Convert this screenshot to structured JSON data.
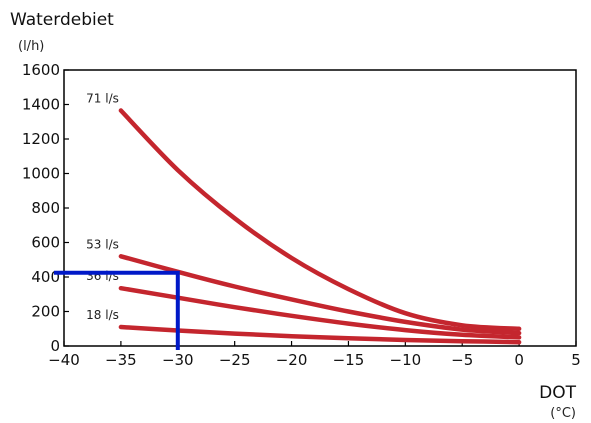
{
  "chart_data": {
    "type": "line",
    "title": "Waterdebiet",
    "ylabel": "Waterdebiet",
    "yunit": "(l/h)",
    "xlabel": "DOT",
    "xunit": "(°C)",
    "xlim": [
      -40,
      5
    ],
    "ylim": [
      0,
      1600
    ],
    "xticks": [
      -40,
      -35,
      -30,
      -25,
      -20,
      -15,
      -10,
      -5,
      0,
      5
    ],
    "yticks": [
      0,
      200,
      400,
      600,
      800,
      1000,
      1200,
      1400,
      1600
    ],
    "grid": false,
    "series_color": "#c4262e",
    "marker_color": "#0019c8",
    "series": [
      {
        "name": "71 l/s",
        "x": [
          -35,
          -30,
          -25,
          -20,
          -15,
          -10,
          -5,
          0
        ],
        "y": [
          1365,
          1020,
          740,
          510,
          330,
          190,
          120,
          100
        ]
      },
      {
        "name": "53 l/s",
        "x": [
          -35,
          -30,
          -25,
          -20,
          -15,
          -10,
          -5,
          0
        ],
        "y": [
          520,
          430,
          345,
          270,
          200,
          140,
          95,
          75
        ]
      },
      {
        "name": "36 l/s",
        "x": [
          -35,
          -30,
          -25,
          -20,
          -15,
          -10,
          -5,
          0
        ],
        "y": [
          335,
          280,
          225,
          175,
          130,
          92,
          65,
          50
        ]
      },
      {
        "name": "18 l/s",
        "x": [
          -35,
          -30,
          -25,
          -20,
          -15,
          -10,
          -5,
          0
        ],
        "y": [
          110,
          90,
          72,
          57,
          45,
          35,
          28,
          22
        ]
      }
    ],
    "annotation": {
      "x": -30,
      "y": 425
    }
  }
}
